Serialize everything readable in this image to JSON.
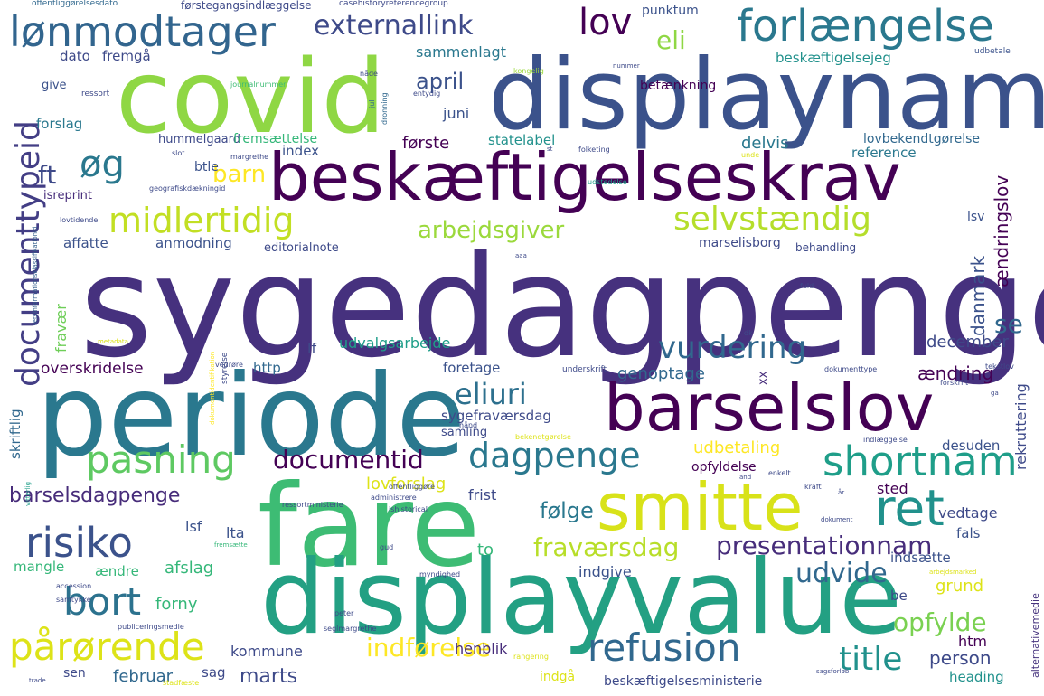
{
  "palette": {
    "dark_purple": "#440154",
    "indigo": "#3e4a89",
    "slate_blue": "#31688e",
    "teal": "#21918c",
    "green_teal": "#1f9e89",
    "green": "#35b779",
    "lime": "#6ece58",
    "yellow_green": "#b5de2b",
    "yellow": "#fde725",
    "background": "#ffffff"
  },
  "words": {
    "sygedagpenge": "sygedagpenge",
    "periode": "periode",
    "displaynam": "displaynam",
    "covid": "covid",
    "fare": "fare",
    "displayvalue": "displayvalue",
    "beskaeftigelseskrav": "beskæftigelseskrav",
    "barselslov": "barselslov",
    "smitte": "smitte",
    "forlaengelse": "forlængelse",
    "loenmodtager": "lønmodtager",
    "midlertidig": "midlertidig",
    "selvstaendig": "selvstændig",
    "pasning": "pasning",
    "shortnam": "shortnam",
    "ret": "ret",
    "risiko": "risiko",
    "refusion": "refusion",
    "bort": "bort",
    "paaroerende": "pårørende",
    "dagpenge": "dagpenge",
    "documenttypeid": "documenttypeid",
    "lov": "lov",
    "externallink": "externallink",
    "vurdering": "vurdering",
    "eliuri": "eliuri",
    "documentid": "documentid",
    "presentationnam": "presentationnam",
    "fravaersdag": "fraværsdag",
    "title": "title",
    "opfylde": "opfylde",
    "udvide": "udvide",
    "indfoerelse": "indførelse",
    "barsel": "barsel",
    "oeg": "øg",
    "ft": "ft",
    "barn": "barn",
    "arbejdsgiver": "arbejdsgiver",
    "april": "april",
    "eli": "eli",
    "juni": "juni",
    "foerste": "første",
    "delvis": "delvis",
    "statelabel": "statelabel",
    "index": "index",
    "barselsdagpenge": "barselsdagpenge",
    "foelge": "følge",
    "lovforslag": "lovforslag",
    "frist": "frist",
    "sted": "sted",
    "vedtage": "vedtage",
    "udbetaling": "udbetaling",
    "opfyldelse": "opfyldelse",
    "desuden": "desuden",
    "aendring": "ændring",
    "genoptage": "genoptage",
    "foretage": "foretage",
    "december": "december",
    "se": "se",
    "danmark": "danmark",
    "aendringslov": "ændringslov",
    "lsv": "lsv",
    "marselisborg": "marselisborg",
    "behandling": "behandling",
    "reference": "reference",
    "lovbekendtgoerelse": "lovbekendtgørelse",
    "beskaeftigelsejeg": "beskæftigelsejeg",
    "betaenkning": "betænkning",
    "punktum": "punktum",
    "sammenlagt": "sammenlagt",
    "dato": "dato",
    "fremgaa": "fremgå",
    "give": "give",
    "forslag": "forslag",
    "hummelgaard": "hummelgaard",
    "fremsaettelse": "fremsættelse",
    "btle": "btle",
    "isreprint": "isreprint",
    "affatte": "affatte",
    "anmodning": "anmodning",
    "editorialnote": "editorialnote",
    "fravaer": "fravær",
    "lf": "lf",
    "udvalgsarbejde": "udvalgsarbejde",
    "overskridelse": "overskridelse",
    "http": "http",
    "skriftlig": "skriftlig",
    "sygefravaersdag": "sygefraværsdag",
    "samling": "samling",
    "lsf": "lsf",
    "lta": "lta",
    "to": "to",
    "fals": "fals",
    "indsaette": "indsætte",
    "indgive": "indgive",
    "grund": "grund",
    "mangle": "mangle",
    "aendre": "ændre",
    "afslag": "afslag",
    "forny": "forny",
    "be": "be",
    "htm": "htm",
    "person": "person",
    "heading": "heading",
    "kommune": "kommune",
    "henblik": "henblik",
    "marts": "marts",
    "februar": "februar",
    "sag": "sag",
    "sen": "sen",
    "indgaa": "indgå",
    "beskaeftigelsesministerie": "beskæftigelsesministerie",
    "rekruttering": "rekruttering",
    "alternativemedie": "alternativemedie",
    "xx": "xx",
    "offentliggoerelsesdato": "offentliggørelsesdato",
    "casehistoryreferencegroup": "casehistoryreferencegroup",
    "foerstegangsindlaeggelse": "førstegangsindlæggelse",
    "journalnummer": "journalnummer",
    "ressort": "ressort",
    "naade": "nåde",
    "kongelig": "kongelig",
    "nummer": "nummer",
    "udbetale": "udbetale",
    "entydig": "entydig",
    "juli": "juli",
    "dronning": "dronning",
    "slot": "slot",
    "margrethe": "margrethe",
    "geografiskdaekningid": "geografiskdækningid",
    "lovtidende": "lovtidende",
    "retsinformationsklassifikationid": "retsinformationsklassifikationid",
    "metadata": "metadata",
    "udstedelse": "udstedelse",
    "folketing": "folketing",
    "unde": "unde",
    "st": "st",
    "styrelse": "styrelse",
    "dokumentidentifikation": "dokumentidentifikation",
    "vedroere": "vedrøre",
    "underskrift": "underskrift",
    "dk": "dk",
    "fuld": "fuld",
    "tekstlov": "tekstlov",
    "dokumenttype": "dokumenttype",
    "forskrift": "forskrift",
    "ga": "ga",
    "haand": "hånd",
    "bekendtgoerelse": "bekendtgørelse",
    "indlaeggelse": "indlæggelse",
    "enkelt": "enkelt",
    "offentliggoere": "offentliggøre",
    "administrere": "administrere",
    "and": "and",
    "kraft": "kraft",
    "aar": "år",
    "ressortministerie": "ressortministerie",
    "ishistorical": "ishistorical",
    "dokument": "dokument",
    "fremsaette": "fremsætte",
    "gud": "gud",
    "myndighed": "myndighed",
    "arbejdsmarked": "arbejdsmarked",
    "accession": "accession",
    "samtykke": "samtykke",
    "peter": "peter",
    "publiceringsmedie": "publiceringsmedie",
    "seglmargrethe": "seglmargrethe",
    "rangering": "rangering",
    "trade": "trade",
    "stadfaeste": "stadfæste",
    "sagsforloeb": "sagsforløb",
    "vittellig": "vitterlig",
    "aaa": "aaa"
  }
}
